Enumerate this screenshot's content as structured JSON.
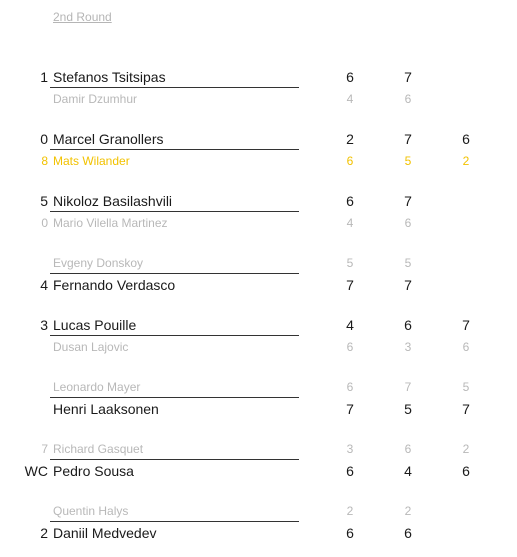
{
  "round_label": "2nd Round",
  "matches": [
    {
      "top": {
        "seed": "1",
        "name": "Stefanos Tsitsipas",
        "scores": [
          "6",
          "7",
          ""
        ],
        "style": "winner"
      },
      "bottom": {
        "seed": "",
        "name": "Damir Dzumhur",
        "scores": [
          "4",
          "6",
          ""
        ],
        "style": "loser"
      }
    },
    {
      "top": {
        "seed": "0",
        "name": "Marcel Granollers",
        "scores": [
          "2",
          "7",
          "6"
        ],
        "style": "winner"
      },
      "bottom": {
        "seed": "8",
        "name": "Mats Wilander",
        "scores": [
          "6",
          "5",
          "2"
        ],
        "style": "highlight"
      }
    },
    {
      "top": {
        "seed": "5",
        "name": "Nikoloz Basilashvili",
        "scores": [
          "6",
          "7",
          ""
        ],
        "style": "winner"
      },
      "bottom": {
        "seed": "0",
        "name": "Mario Vilella Martinez",
        "scores": [
          "4",
          "6",
          ""
        ],
        "style": "loser"
      }
    },
    {
      "top": {
        "seed": "",
        "name": "Evgeny Donskoy",
        "scores": [
          "5",
          "5",
          ""
        ],
        "style": "loser"
      },
      "bottom": {
        "seed": "4",
        "name": "Fernando Verdasco",
        "scores": [
          "7",
          "7",
          ""
        ],
        "style": "winner"
      }
    },
    {
      "top": {
        "seed": "3",
        "name": "Lucas Pouille",
        "scores": [
          "4",
          "6",
          "7"
        ],
        "style": "winner"
      },
      "bottom": {
        "seed": "",
        "name": "Dusan Lajovic",
        "scores": [
          "6",
          "3",
          "6"
        ],
        "style": "loser"
      }
    },
    {
      "top": {
        "seed": "",
        "name": "Leonardo Mayer",
        "scores": [
          "6",
          "7",
          "5"
        ],
        "style": "loser"
      },
      "bottom": {
        "seed": "",
        "name": "Henri Laaksonen",
        "scores": [
          "7",
          "5",
          "7"
        ],
        "style": "winner"
      }
    },
    {
      "top": {
        "seed": "7",
        "name": "Richard Gasquet",
        "scores": [
          "3",
          "6",
          "2"
        ],
        "style": "loser"
      },
      "bottom": {
        "seed": "WC",
        "name": "Pedro Sousa",
        "scores": [
          "6",
          "4",
          "6"
        ],
        "style": "winner"
      }
    },
    {
      "top": {
        "seed": "",
        "name": "Quentin Halys",
        "scores": [
          "2",
          "2",
          ""
        ],
        "style": "loser"
      },
      "bottom": {
        "seed": "2",
        "name": "Daniil Medvedev",
        "scores": [
          "6",
          "6",
          ""
        ],
        "style": "winner"
      }
    }
  ]
}
